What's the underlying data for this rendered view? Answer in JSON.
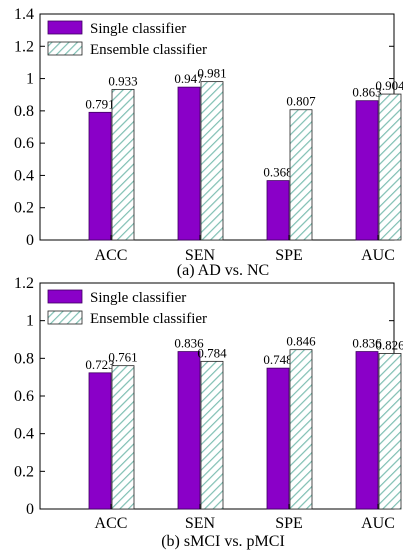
{
  "colors": {
    "single": "#8a00c8",
    "ensemble_hatch": "#7fbfb3",
    "axis": "#000000"
  },
  "chart_data": [
    {
      "type": "bar",
      "caption": "(a) AD vs. NC",
      "categories": [
        "ACC",
        "SEN",
        "SPE",
        "AUC"
      ],
      "series": [
        {
          "name": "Single classifier",
          "values": [
            0.791,
            0.947,
            0.368,
            0.863
          ],
          "labels": [
            "0.791",
            "0.947",
            "0.368",
            "0.863"
          ]
        },
        {
          "name": "Ensemble classifier",
          "values": [
            0.933,
            0.981,
            0.807,
            0.904
          ],
          "labels": [
            "0.933",
            "0.981",
            "0.807",
            "0.904"
          ]
        }
      ],
      "ylim": [
        0,
        1.4
      ],
      "yticks": [
        "0",
        "0.2",
        "0.4",
        "0.6",
        "0.8",
        "1",
        "1.2",
        "1.4"
      ],
      "legend": "top-left",
      "grid": false
    },
    {
      "type": "bar",
      "caption": "(b) sMCI vs. pMCI",
      "categories": [
        "ACC",
        "SEN",
        "SPE",
        "AUC"
      ],
      "series": [
        {
          "name": "Single classifier",
          "values": [
            0.723,
            0.836,
            0.748,
            0.836
          ],
          "labels": [
            "0.723",
            "0.836",
            "0.748",
            "0.836"
          ]
        },
        {
          "name": "Ensemble classifier",
          "values": [
            0.761,
            0.784,
            0.846,
            0.826
          ],
          "labels": [
            "0.761",
            "0.784",
            "0.846",
            "0.826"
          ]
        }
      ],
      "ylim": [
        0,
        1.2
      ],
      "yticks": [
        "0",
        "0.2",
        "0.4",
        "0.6",
        "0.8",
        "1",
        "1.2"
      ],
      "legend": "top-left",
      "grid": false
    }
  ]
}
